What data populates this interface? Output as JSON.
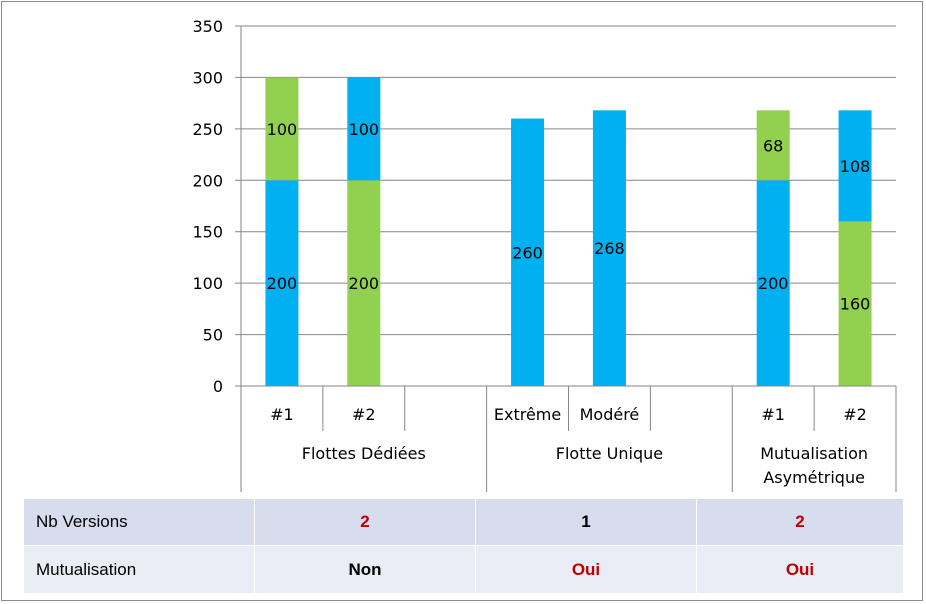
{
  "chart_data": {
    "type": "bar",
    "stacked": true,
    "ylim": [
      0,
      350
    ],
    "yticks": [
      0,
      50,
      100,
      150,
      200,
      250,
      300,
      350
    ],
    "grid": true,
    "colors": {
      "blue": "#00b0f0",
      "green": "#92d050"
    },
    "bars": [
      {
        "label": "#1",
        "segments": [
          {
            "value": 200,
            "color": "blue"
          },
          {
            "value": 100,
            "color": "green"
          }
        ]
      },
      {
        "label": "#2",
        "segments": [
          {
            "value": 200,
            "color": "green"
          },
          {
            "value": 100,
            "color": "blue"
          }
        ]
      },
      {
        "label": "",
        "segments": []
      },
      {
        "label": "Extrême",
        "segments": [
          {
            "value": 260,
            "color": "blue"
          }
        ]
      },
      {
        "label": "Modéré",
        "segments": [
          {
            "value": 268,
            "color": "blue"
          }
        ]
      },
      {
        "label": "",
        "segments": []
      },
      {
        "label": "#1",
        "segments": [
          {
            "value": 200,
            "color": "blue"
          },
          {
            "value": 68,
            "color": "green"
          }
        ]
      },
      {
        "label": "#2",
        "segments": [
          {
            "value": 160,
            "color": "green"
          },
          {
            "value": 108,
            "color": "blue"
          }
        ]
      }
    ],
    "groups": [
      {
        "lines": [
          "Flottes Dédiées"
        ]
      },
      {
        "lines": [
          "Flotte Unique"
        ]
      },
      {
        "lines": [
          "Mutualisation",
          "Asymétrique"
        ]
      }
    ]
  },
  "table": {
    "rows": [
      {
        "label": "Nb Versions",
        "values": [
          {
            "text": "2",
            "color": "#c00000"
          },
          {
            "text": "1",
            "color": "#000000"
          },
          {
            "text": "2",
            "color": "#c00000"
          }
        ]
      },
      {
        "label": "Mutualisation",
        "values": [
          {
            "text": "Non",
            "color": "#000000"
          },
          {
            "text": "Oui",
            "color": "#c00000"
          },
          {
            "text": "Oui",
            "color": "#c00000"
          }
        ]
      }
    ]
  }
}
